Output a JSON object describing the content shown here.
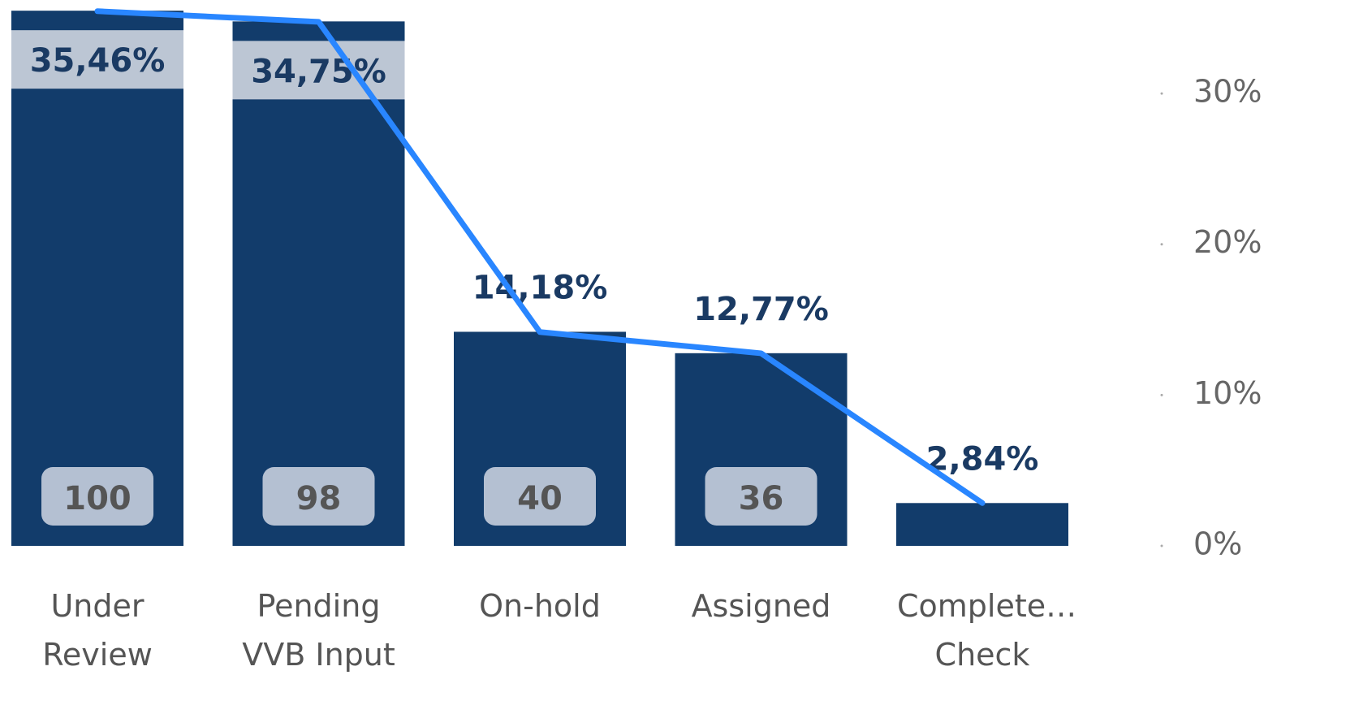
{
  "chart_data": {
    "type": "bar-line",
    "categories": [
      "Under Review",
      "Pending VVB Input",
      "On-hold",
      "Assigned",
      "Complete… Check"
    ],
    "series": [
      {
        "type": "bar",
        "color": "#123c6b",
        "values": [
          100,
          98,
          40,
          36,
          8
        ],
        "value_labels": [
          "100",
          "98",
          "40",
          "36",
          null
        ]
      },
      {
        "type": "line",
        "axis": "y2",
        "color": "#2986ff",
        "values": [
          35.46,
          34.75,
          14.18,
          12.77,
          2.84
        ],
        "value_labels": [
          "35,46%",
          "34,75%",
          "14,18%",
          "12,77%",
          "2,84%"
        ]
      }
    ],
    "ylim": [
      0,
      102
    ],
    "y2lim": [
      0,
      36.2
    ],
    "y2ticks": [
      {
        "value": 0,
        "label": "0%"
      },
      {
        "value": 10,
        "label": "10%"
      },
      {
        "value": 20,
        "label": "20%"
      },
      {
        "value": 30,
        "label": "30%"
      }
    ]
  }
}
